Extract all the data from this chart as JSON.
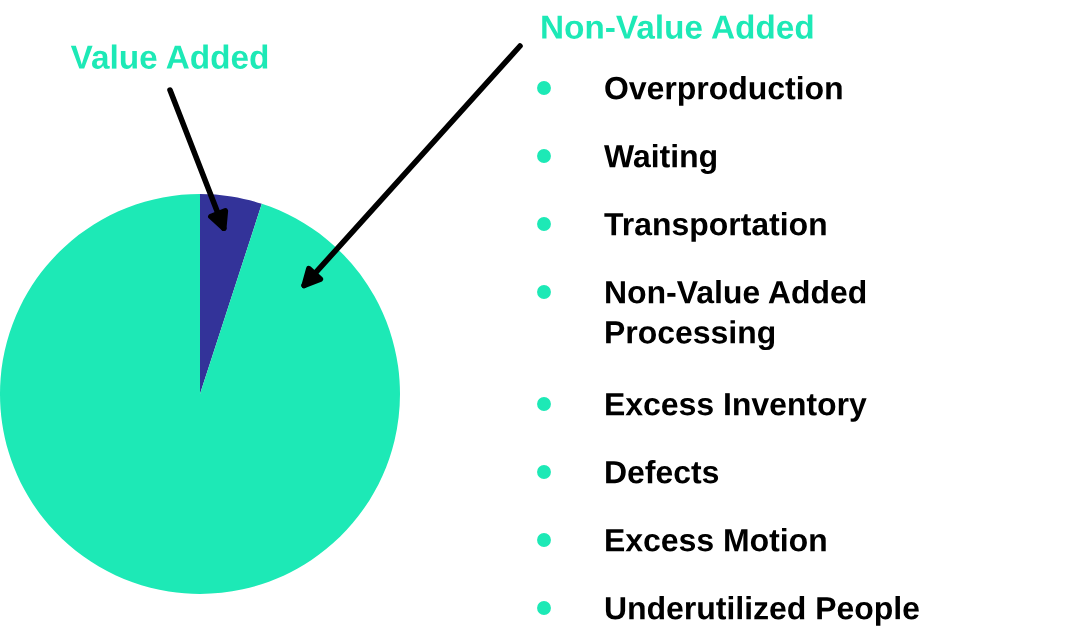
{
  "chart_data": {
    "type": "pie",
    "categories": [
      "Value Added",
      "Non-Value Added"
    ],
    "values": [
      5,
      95
    ],
    "colors": [
      "#333399",
      "#1de9b6"
    ],
    "annotations": [
      "Overproduction",
      "Waiting",
      "Transportation",
      "Non-Value Added\nProcessing",
      "Excess Inventory",
      "Defects",
      "Excess Motion",
      "Underutilized People"
    ]
  }
}
